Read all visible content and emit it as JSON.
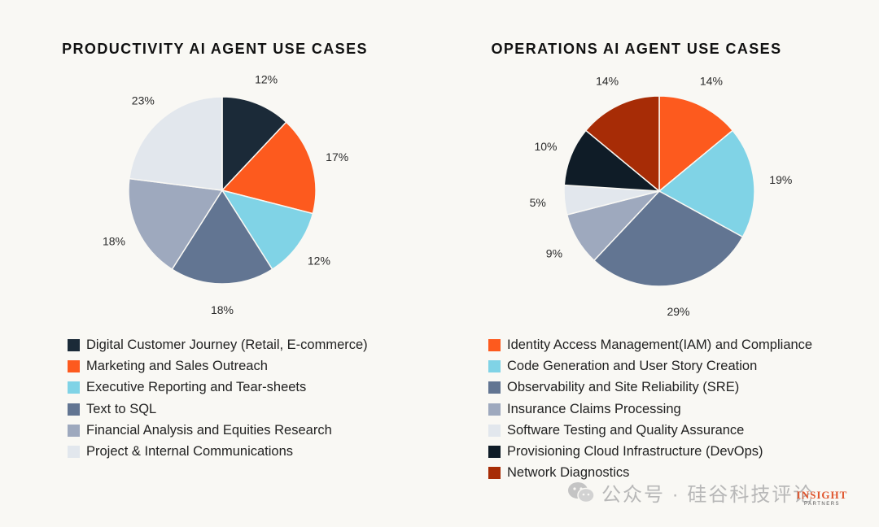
{
  "chart_data": [
    {
      "type": "pie",
      "title": "PRODUCTIVITY AI AGENT USE CASES",
      "categories": [
        "Digital Customer Journey (Retail, E-commerce)",
        "Marketing and Sales Outreach",
        "Executive Reporting and Tear-sheets",
        "Text to SQL",
        "Financial Analysis and Equities Research",
        "Project & Internal Communications"
      ],
      "values": [
        12,
        17,
        12,
        18,
        18,
        23
      ],
      "labels": [
        "12%",
        "17%",
        "12%",
        "18%",
        "18%",
        "23%"
      ],
      "colors": [
        "#1b2a38",
        "#fd5a1e",
        "#80d3e6",
        "#627592",
        "#9ea9be",
        "#e2e7ed"
      ],
      "legend": "bottom"
    },
    {
      "type": "pie",
      "title": "OPERATIONS AI AGENT USE CASES",
      "categories": [
        "Identity Access Management(IAM) and Compliance",
        "Code Generation and User Story Creation",
        "Observability and Site Reliability (SRE)",
        "Insurance Claims Processing",
        "Software Testing and Quality Assurance",
        "Provisioning Cloud Infrastructure (DevOps)",
        "Network Diagnostics"
      ],
      "values": [
        14,
        19,
        29,
        9,
        5,
        10,
        14
      ],
      "labels": [
        "14%",
        "19%",
        "29%",
        "9%",
        "5%",
        "10%",
        "14%"
      ],
      "colors": [
        "#fd5a1e",
        "#80d3e6",
        "#627592",
        "#9ea9be",
        "#e2e7ed",
        "#0f1c27",
        "#a72c06"
      ],
      "legend": "bottom"
    }
  ],
  "watermark": {
    "text": "公众号 · 硅谷科技评论"
  },
  "brand": {
    "name": "INSIGHT",
    "sub": "PARTNERS"
  }
}
